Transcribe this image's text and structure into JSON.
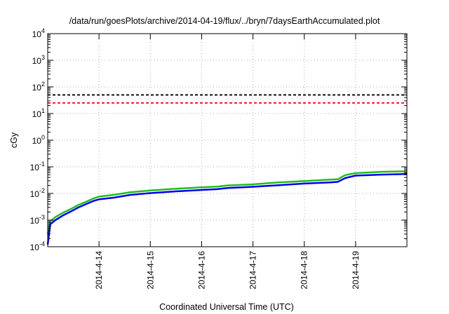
{
  "chart_data": {
    "type": "line",
    "title": "/data/run/goesPlots/archive/2014-04-19/flux/../bryn/7daysEarthAccumulated.plot",
    "xlabel": "Coordinated Universal Time (UTC)",
    "ylabel": "cGy",
    "yscale": "log",
    "ylim": [
      0.0001,
      10000
    ],
    "xlim": [
      "2014-04-13 00:00",
      "2014-04-20 00:00"
    ],
    "grid": true,
    "yticks": [
      {
        "base": "10",
        "exp": "4",
        "value": 10000
      },
      {
        "base": "10",
        "exp": "3",
        "value": 1000
      },
      {
        "base": "10",
        "exp": "2",
        "value": 100
      },
      {
        "base": "10",
        "exp": "1",
        "value": 10
      },
      {
        "base": "10",
        "exp": "0",
        "value": 1
      },
      {
        "base": "10",
        "exp": "-1",
        "value": 0.1
      },
      {
        "base": "10",
        "exp": "-2",
        "value": 0.01
      },
      {
        "base": "10",
        "exp": "-3",
        "value": 0.001
      },
      {
        "base": "10",
        "exp": "-4",
        "value": 0.0001
      }
    ],
    "xticks": [
      {
        "label": "2014-4-14",
        "date": "2014-04-14 00:00"
      },
      {
        "label": "2014-4-15",
        "date": "2014-04-15 00:00"
      },
      {
        "label": "2014-4-16",
        "date": "2014-04-16 00:00"
      },
      {
        "label": "2014-4-17",
        "date": "2014-04-17 00:00"
      },
      {
        "label": "2014-4-18",
        "date": "2014-04-18 00:00"
      },
      {
        "label": "2014-4-19",
        "date": "2014-04-19 00:00"
      }
    ],
    "reference_lines": [
      {
        "value": 50,
        "color": "#000000",
        "style": "dashed"
      },
      {
        "value": 25,
        "color": "#ff0000",
        "style": "dashed"
      }
    ],
    "series": [
      {
        "color": "#22bb22",
        "x": [
          "2014-04-13 00:00",
          "2014-04-13 01:12",
          "2014-04-13 03:36",
          "2014-04-13 07:12",
          "2014-04-13 10:48",
          "2014-04-13 14:24",
          "2014-04-13 18:00",
          "2014-04-13 21:36",
          "2014-04-14 00:00",
          "2014-04-14 07:12",
          "2014-04-14 14:24",
          "2014-04-15 00:00",
          "2014-04-15 12:00",
          "2014-04-16 00:00",
          "2014-04-16 07:12",
          "2014-04-16 12:00",
          "2014-04-17 00:00",
          "2014-04-17 12:00",
          "2014-04-18 00:00",
          "2014-04-18 12:00",
          "2014-04-18 15:36",
          "2014-04-18 19:12",
          "2014-04-19 00:00",
          "2014-04-19 12:00",
          "2014-04-20 00:00"
        ],
        "values": [
          0.0003,
          0.0009,
          0.0013,
          0.0019,
          0.0026,
          0.0037,
          0.0049,
          0.0066,
          0.0076,
          0.0089,
          0.011,
          0.013,
          0.015,
          0.017,
          0.018,
          0.02,
          0.022,
          0.026,
          0.029,
          0.033,
          0.034,
          0.049,
          0.058,
          0.065,
          0.068
        ]
      },
      {
        "color": "#0000ee",
        "x": [
          "2014-04-13 00:00",
          "2014-04-13 01:12",
          "2014-04-13 03:36",
          "2014-04-13 07:12",
          "2014-04-13 10:48",
          "2014-04-13 14:24",
          "2014-04-13 18:00",
          "2014-04-13 21:36",
          "2014-04-14 00:00",
          "2014-04-14 07:12",
          "2014-04-14 14:24",
          "2014-04-15 00:00",
          "2014-04-15 12:00",
          "2014-04-16 00:00",
          "2014-04-16 07:12",
          "2014-04-16 12:00",
          "2014-04-17 00:00",
          "2014-04-17 12:00",
          "2014-04-18 00:00",
          "2014-04-18 12:00",
          "2014-04-18 15:36",
          "2014-04-18 19:12",
          "2014-04-19 00:00",
          "2014-04-19 12:00",
          "2014-04-20 00:00"
        ],
        "values": [
          0.00012,
          0.0007,
          0.001,
          0.0015,
          0.0021,
          0.003,
          0.004,
          0.0053,
          0.006,
          0.007,
          0.0088,
          0.0103,
          0.012,
          0.0135,
          0.0145,
          0.016,
          0.0178,
          0.0205,
          0.0235,
          0.026,
          0.0272,
          0.038,
          0.047,
          0.051,
          0.054
        ]
      }
    ]
  }
}
